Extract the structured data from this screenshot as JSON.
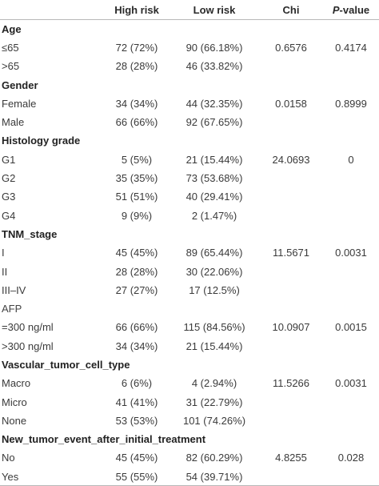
{
  "header": {
    "col0": "",
    "col1": "High risk",
    "col2": "Low risk",
    "col3": "Chi",
    "col4_italic": "P",
    "col4_rest": "-value"
  },
  "rows": [
    {
      "type": "section",
      "label": "Age"
    },
    {
      "type": "data",
      "label": "≤65",
      "high": "72 (72%)",
      "low": "90 (66.18%)",
      "chi": "0.6576",
      "p": "0.4174"
    },
    {
      "type": "data",
      "label": ">65",
      "high": "28 (28%)",
      "low": "46 (33.82%)",
      "chi": "",
      "p": ""
    },
    {
      "type": "section",
      "label": "Gender"
    },
    {
      "type": "data",
      "label": "Female",
      "high": "34 (34%)",
      "low": "44 (32.35%)",
      "chi": "0.0158",
      "p": "0.8999"
    },
    {
      "type": "data",
      "label": "Male",
      "high": "66 (66%)",
      "low": "92 (67.65%)",
      "chi": "",
      "p": ""
    },
    {
      "type": "section",
      "label": "Histology grade"
    },
    {
      "type": "data",
      "label": "G1",
      "high": "5 (5%)",
      "low": "21 (15.44%)",
      "chi": "24.0693",
      "p": "0"
    },
    {
      "type": "data",
      "label": "G2",
      "high": "35 (35%)",
      "low": "73 (53.68%)",
      "chi": "",
      "p": ""
    },
    {
      "type": "data",
      "label": "G3",
      "high": "51 (51%)",
      "low": "40 (29.41%)",
      "chi": "",
      "p": ""
    },
    {
      "type": "data",
      "label": "G4",
      "high": "9 (9%)",
      "low": "2 (1.47%)",
      "chi": "",
      "p": ""
    },
    {
      "type": "section",
      "label": "TNM_stage"
    },
    {
      "type": "data",
      "label": "I",
      "high": "45 (45%)",
      "low": "89 (65.44%)",
      "chi": "11.5671",
      "p": "0.0031"
    },
    {
      "type": "data",
      "label": "II",
      "high": "28 (28%)",
      "low": "30 (22.06%)",
      "chi": "",
      "p": ""
    },
    {
      "type": "data",
      "label": "III–IV",
      "high": "27 (27%)",
      "low": "17 (12.5%)",
      "chi": "",
      "p": ""
    },
    {
      "type": "sub",
      "label": "AFP"
    },
    {
      "type": "data",
      "label": "=300 ng/ml",
      "high": "66 (66%)",
      "low": "115 (84.56%)",
      "chi": "10.0907",
      "p": "0.0015"
    },
    {
      "type": "data",
      "label": ">300 ng/ml",
      "high": "34 (34%)",
      "low": "21 (15.44%)",
      "chi": "",
      "p": ""
    },
    {
      "type": "section",
      "label": "Vascular_tumor_cell_type",
      "indent": "neg"
    },
    {
      "type": "data",
      "label": "Macro",
      "high": "6 (6%)",
      "low": "4 (2.94%)",
      "chi": "11.5266",
      "p": "0.0031"
    },
    {
      "type": "data",
      "label": "Micro",
      "high": "41 (41%)",
      "low": "31 (22.79%)",
      "chi": "",
      "p": ""
    },
    {
      "type": "data",
      "label": "None",
      "high": "53 (53%)",
      "low": "101 (74.26%)",
      "chi": "",
      "p": ""
    },
    {
      "type": "section",
      "label": "New_tumor_event_after_initial_treatment"
    },
    {
      "type": "data",
      "label": "No",
      "high": "45 (45%)",
      "low": "82 (60.29%)",
      "chi": "4.8255",
      "p": "0.028"
    },
    {
      "type": "data",
      "label": "Yes",
      "high": "55 (55%)",
      "low": "54 (39.71%)",
      "chi": "",
      "p": ""
    }
  ]
}
